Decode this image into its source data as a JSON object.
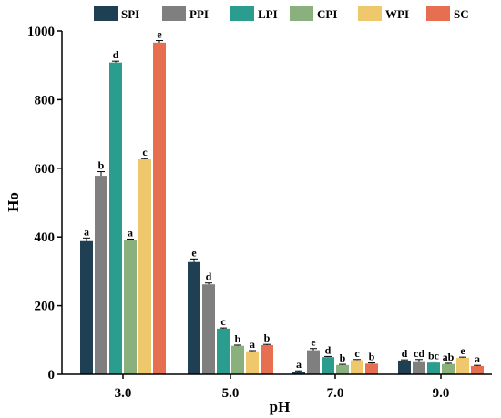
{
  "chart_data": {
    "type": "bar",
    "xlabel": "pH",
    "ylabel": "Ho",
    "ylim": [
      0,
      1000
    ],
    "yticks": [
      0,
      200,
      400,
      600,
      800,
      1000
    ],
    "grid": false,
    "legend_position": "top",
    "categories": [
      "3.0",
      "5.0",
      "7.0",
      "9.0"
    ],
    "series": [
      {
        "name": "SPI",
        "color": "#1f3f52",
        "values": [
          388,
          327,
          8,
          40
        ],
        "errors": [
          9,
          9,
          2,
          2
        ],
        "labels": [
          "a",
          "e",
          "a",
          "d"
        ]
      },
      {
        "name": "PPI",
        "color": "#7f7f7f",
        "values": [
          578,
          262,
          70,
          38
        ],
        "errors": [
          12,
          4,
          5,
          5
        ],
        "labels": [
          "b",
          "d",
          "e",
          "cd"
        ]
      },
      {
        "name": "LPI",
        "color": "#2a9d8f",
        "values": [
          908,
          133,
          50,
          34
        ],
        "errors": [
          4,
          2,
          2,
          2
        ],
        "labels": [
          "d",
          "c",
          "d",
          "bc"
        ]
      },
      {
        "name": "CPI",
        "color": "#8ab17d",
        "values": [
          390,
          83,
          27,
          30
        ],
        "errors": [
          4,
          2,
          2,
          2
        ],
        "labels": [
          "a",
          "b",
          "b",
          "ab"
        ]
      },
      {
        "name": "WPI",
        "color": "#efc86e",
        "values": [
          626,
          67,
          41,
          48
        ],
        "errors": [
          2,
          2,
          2,
          2
        ],
        "labels": [
          "c",
          "a",
          "c",
          "e"
        ]
      },
      {
        "name": "SC",
        "color": "#e76f51",
        "values": [
          966,
          85,
          31,
          24
        ],
        "errors": [
          6,
          2,
          2,
          2
        ],
        "labels": [
          "e",
          "b",
          "b",
          "a"
        ]
      }
    ]
  }
}
